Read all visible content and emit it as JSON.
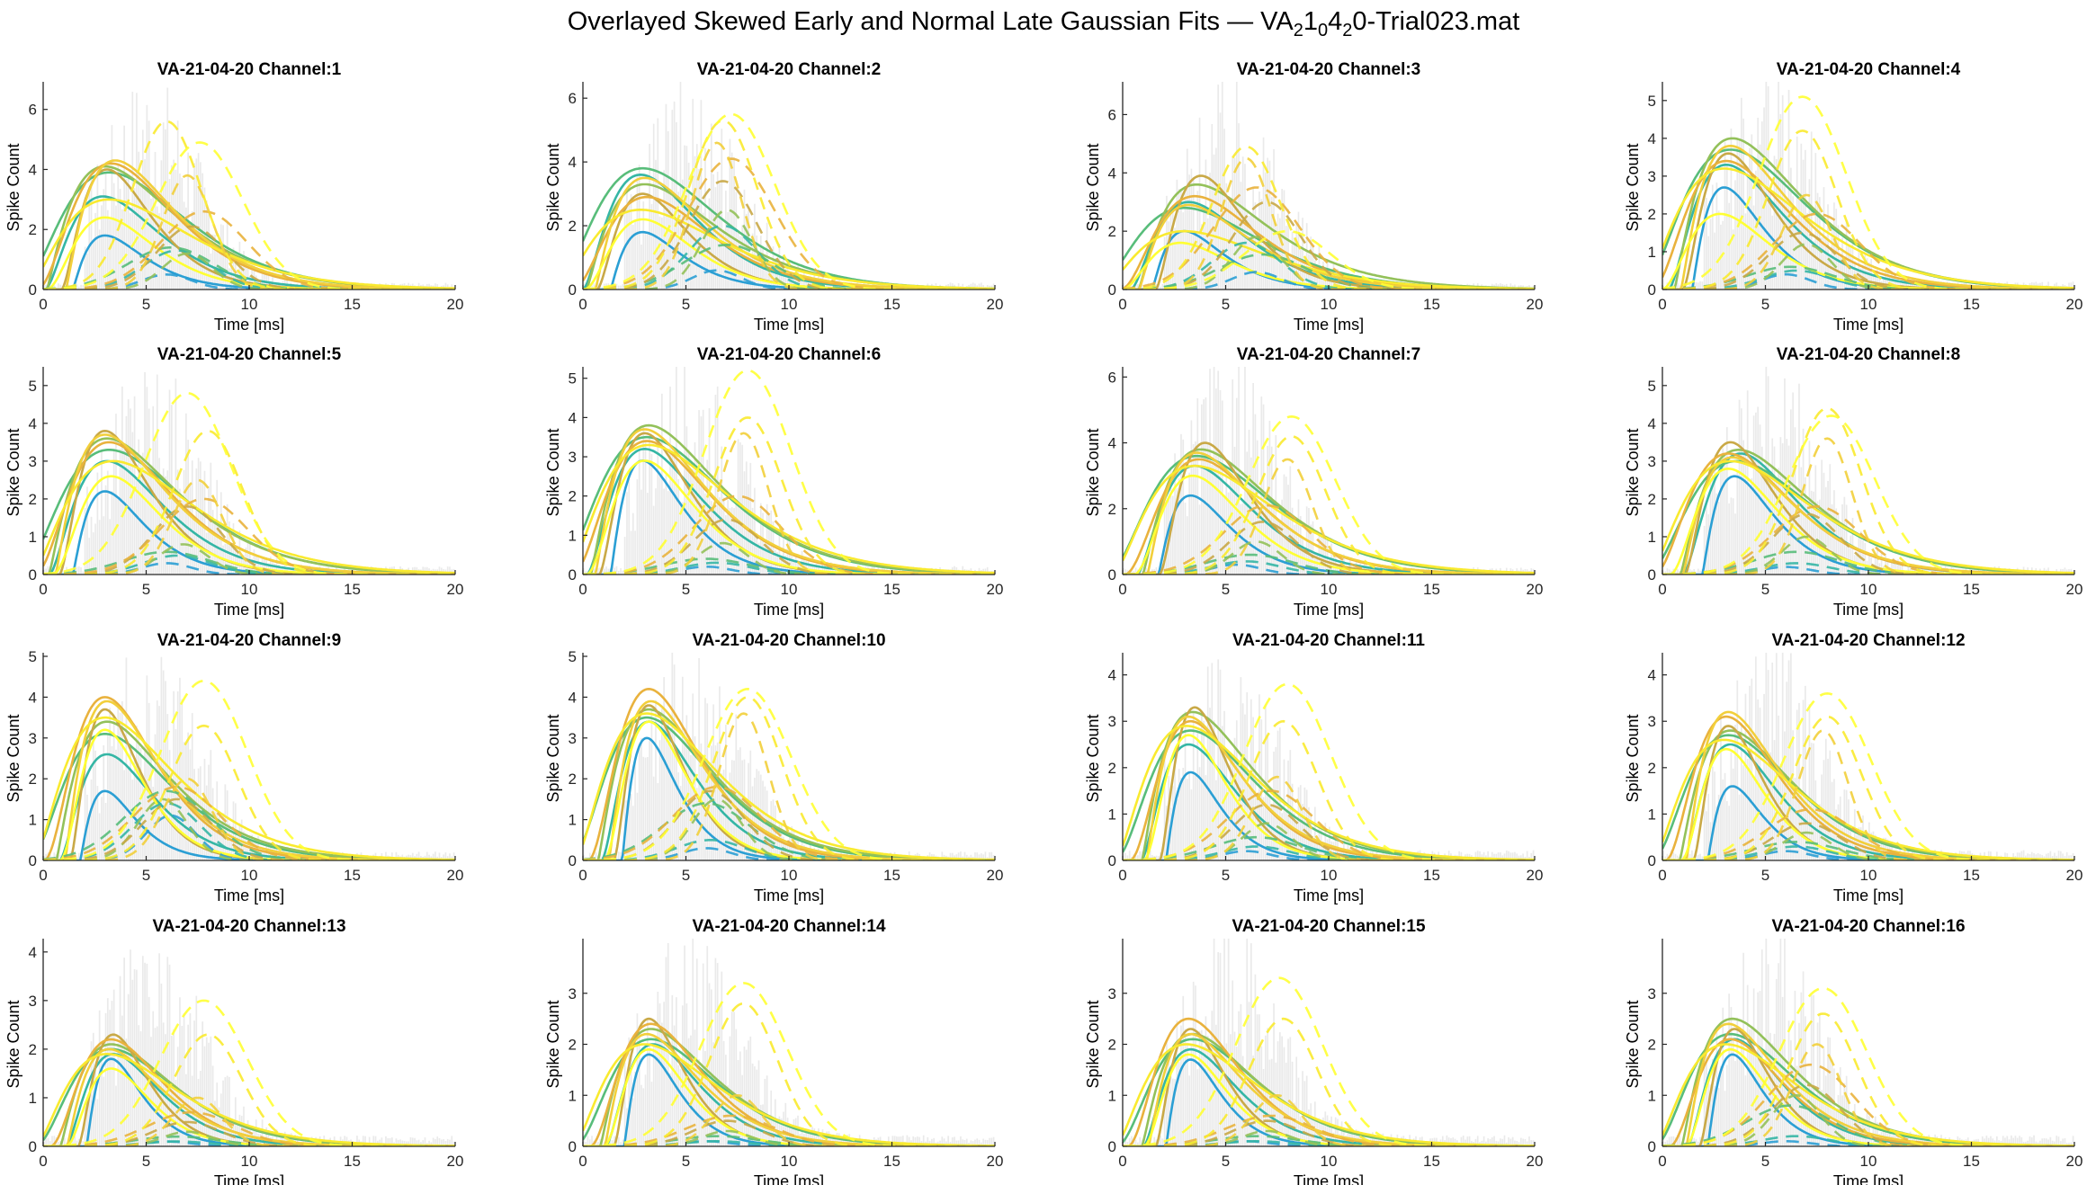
{
  "figure": {
    "title_prefix": "Overlayed Skewed Early and Normal Late Gaussian Fits — VA",
    "title_parts": [
      {
        "text": "2",
        "sub": true
      },
      {
        "text": "1",
        "sub": false
      },
      {
        "text": "0",
        "sub": true
      },
      {
        "text": "4",
        "sub": false
      },
      {
        "text": "2",
        "sub": true
      },
      {
        "text": "0-Trial023.mat",
        "sub": false
      }
    ]
  },
  "colors": {
    "palette": [
      "#2b9fd4",
      "#35b6a5",
      "#58bd7a",
      "#93c15a",
      "#c9a947",
      "#e9b23d",
      "#f2cf3b",
      "#f9ea2f",
      "#ffff33"
    ],
    "histogram": "#d9d9d9",
    "axis": "#262626"
  },
  "chart_data": [
    {
      "type": "line",
      "title": "VA-21-04-20 Channel:1",
      "xlabel": "Time [ms]",
      "ylabel": "Spike Count",
      "xlim": [
        0,
        20
      ],
      "ylim": [
        0,
        6.8
      ],
      "xticks": [
        0,
        5,
        10,
        15,
        20
      ],
      "yticks": [
        0,
        2,
        4,
        6
      ],
      "grid": false,
      "series_note": "overlayed fits",
      "early_peaks": [
        1.8,
        3.1,
        3.9,
        4.1,
        4.0,
        4.2,
        4.3,
        3.0,
        2.4
      ],
      "early_modes": [
        3.0,
        2.9,
        3.2,
        3.0,
        3.1,
        3.3,
        3.5,
        3.2,
        3.0
      ],
      "late_peaks": [
        0.5,
        1.3,
        1.4,
        1.2,
        2.1,
        2.6,
        3.8,
        5.6,
        4.9
      ],
      "late_modes": [
        6.0,
        6.5,
        6.2,
        7.0,
        7.2,
        7.8,
        7.0,
        6.0,
        7.6
      ],
      "hist_peak": 6.5
    },
    {
      "type": "line",
      "title": "VA-21-04-20 Channel:2",
      "xlabel": "Time [ms]",
      "ylabel": "Spike Count",
      "xlim": [
        0,
        20
      ],
      "ylim": [
        0,
        6.4
      ],
      "xticks": [
        0,
        5,
        10,
        15,
        20
      ],
      "yticks": [
        0,
        2,
        4,
        6
      ],
      "grid": false,
      "early_peaks": [
        1.8,
        3.6,
        3.8,
        3.3,
        3.0,
        2.9,
        3.5,
        2.5,
        2.2
      ],
      "early_modes": [
        2.9,
        2.8,
        2.9,
        3.0,
        2.9,
        3.1,
        3.0,
        2.8,
        2.9
      ],
      "late_peaks": [
        0.6,
        2.0,
        1.4,
        2.5,
        3.4,
        4.1,
        4.6,
        5.3,
        5.5
      ],
      "late_modes": [
        6.5,
        6.8,
        7.0,
        7.0,
        6.8,
        7.2,
        6.5,
        6.8,
        7.2
      ],
      "hist_peak": 6.0
    },
    {
      "type": "line",
      "title": "VA-21-04-20 Channel:3",
      "xlabel": "Time [ms]",
      "ylabel": "Spike Count",
      "xlim": [
        0,
        20
      ],
      "ylim": [
        0,
        7.0
      ],
      "xticks": [
        0,
        5,
        10,
        15,
        20
      ],
      "yticks": [
        0,
        2,
        4,
        6
      ],
      "grid": false,
      "early_peaks": [
        2.0,
        3.0,
        2.8,
        3.6,
        3.9,
        3.2,
        2.9,
        2.0,
        1.6
      ],
      "early_modes": [
        3.0,
        3.2,
        3.0,
        3.6,
        3.8,
        3.5,
        3.2,
        3.0,
        2.8
      ],
      "late_peaks": [
        0.6,
        1.6,
        1.2,
        1.8,
        3.0,
        3.5,
        4.5,
        4.9,
        2.0
      ],
      "late_modes": [
        6.5,
        6.0,
        6.8,
        6.5,
        7.0,
        6.5,
        6.0,
        6.0,
        8.0
      ],
      "hist_peak": 6.6
    },
    {
      "type": "line",
      "title": "VA-21-04-20 Channel:4",
      "xlabel": "Time [ms]",
      "ylabel": "Spike Count",
      "xlim": [
        0,
        20
      ],
      "ylim": [
        0,
        5.4
      ],
      "xticks": [
        0,
        5,
        10,
        15,
        20
      ],
      "yticks": [
        0,
        1,
        2,
        3,
        4,
        5
      ],
      "grid": false,
      "early_peaks": [
        2.7,
        3.3,
        3.7,
        4.0,
        3.6,
        3.4,
        3.8,
        3.2,
        2.0
      ],
      "early_modes": [
        3.0,
        3.1,
        3.3,
        3.4,
        3.2,
        3.1,
        3.3,
        3.0,
        2.8
      ],
      "late_peaks": [
        0.4,
        0.5,
        0.6,
        1.2,
        1.5,
        2.0,
        2.5,
        4.2,
        5.1
      ],
      "late_modes": [
        6.0,
        6.5,
        6.2,
        7.0,
        6.8,
        7.5,
        7.0,
        6.8,
        6.8
      ],
      "hist_peak": 5.2
    },
    {
      "type": "line",
      "title": "VA-21-04-20 Channel:5",
      "xlabel": "Time [ms]",
      "ylabel": "Spike Count",
      "xlim": [
        0,
        20
      ],
      "ylim": [
        0,
        5.4
      ],
      "xticks": [
        0,
        5,
        10,
        15,
        20
      ],
      "yticks": [
        0,
        1,
        2,
        3,
        4,
        5
      ],
      "grid": false,
      "early_peaks": [
        2.2,
        3.0,
        3.3,
        3.6,
        3.8,
        3.5,
        3.7,
        3.0,
        2.6
      ],
      "early_modes": [
        3.0,
        3.1,
        3.2,
        3.1,
        3.0,
        3.2,
        3.0,
        3.4,
        3.3
      ],
      "late_peaks": [
        0.3,
        0.5,
        0.6,
        0.8,
        1.8,
        2.0,
        2.5,
        3.8,
        4.8
      ],
      "late_modes": [
        6.0,
        6.5,
        6.0,
        6.8,
        7.0,
        7.8,
        7.5,
        8.0,
        7.0
      ],
      "hist_peak": 5.3
    },
    {
      "type": "line",
      "title": "VA-21-04-20 Channel:6",
      "xlabel": "Time [ms]",
      "ylabel": "Spike Count",
      "xlim": [
        0,
        20
      ],
      "ylim": [
        0,
        5.2
      ],
      "xticks": [
        0,
        5,
        10,
        15,
        20
      ],
      "yticks": [
        0,
        1,
        2,
        3,
        4,
        5
      ],
      "grid": false,
      "early_peaks": [
        2.9,
        3.2,
        3.5,
        3.8,
        3.6,
        3.4,
        3.7,
        3.3,
        2.9
      ],
      "early_modes": [
        2.9,
        3.0,
        3.1,
        3.2,
        3.0,
        3.1,
        3.0,
        3.2,
        3.0
      ],
      "late_peaks": [
        0.2,
        0.3,
        0.4,
        0.8,
        1.4,
        2.0,
        3.6,
        4.0,
        5.2
      ],
      "late_modes": [
        6.0,
        6.5,
        6.0,
        6.8,
        7.0,
        7.5,
        7.8,
        8.0,
        8.0
      ],
      "hist_peak": 5.1
    },
    {
      "type": "line",
      "title": "VA-21-04-20 Channel:7",
      "xlabel": "Time [ms]",
      "ylabel": "Spike Count",
      "xlim": [
        0,
        20
      ],
      "ylim": [
        0,
        6.2
      ],
      "xticks": [
        0,
        5,
        10,
        15,
        20
      ],
      "yticks": [
        0,
        2,
        4,
        6
      ],
      "grid": false,
      "early_peaks": [
        2.4,
        3.3,
        3.6,
        3.8,
        4.0,
        3.5,
        3.7,
        3.3,
        3.0
      ],
      "early_modes": [
        3.3,
        3.5,
        3.6,
        3.8,
        4.0,
        3.7,
        3.6,
        3.5,
        3.4
      ],
      "late_peaks": [
        0.3,
        0.4,
        0.6,
        1.0,
        1.6,
        2.1,
        3.5,
        4.2,
        4.8
      ],
      "late_modes": [
        5.5,
        6.0,
        6.2,
        6.5,
        6.8,
        7.0,
        8.0,
        8.2,
        8.2
      ],
      "hist_peak": 6.0
    },
    {
      "type": "line",
      "title": "VA-21-04-20 Channel:8",
      "xlabel": "Time [ms]",
      "ylabel": "Spike Count",
      "xlim": [
        0,
        20
      ],
      "ylim": [
        0,
        5.4
      ],
      "xticks": [
        0,
        5,
        10,
        15,
        20
      ],
      "yticks": [
        0,
        1,
        2,
        3,
        4,
        5
      ],
      "grid": false,
      "early_peaks": [
        2.6,
        3.2,
        3.0,
        3.3,
        3.5,
        3.2,
        3.1,
        3.0,
        2.8
      ],
      "early_modes": [
        3.5,
        3.8,
        3.6,
        3.7,
        3.3,
        3.2,
        3.4,
        3.3,
        3.2
      ],
      "late_peaks": [
        0.2,
        0.3,
        0.6,
        1.0,
        1.6,
        1.8,
        3.6,
        4.4,
        4.2
      ],
      "late_modes": [
        6.0,
        6.5,
        6.5,
        7.0,
        7.0,
        7.5,
        8.0,
        8.0,
        8.2
      ],
      "hist_peak": 5.3
    },
    {
      "type": "line",
      "title": "VA-21-04-20 Channel:9",
      "xlabel": "Time [ms]",
      "ylabel": "Spike Count",
      "xlim": [
        0,
        20
      ],
      "ylim": [
        0,
        5.0
      ],
      "xticks": [
        0,
        5,
        10,
        15,
        20
      ],
      "yticks": [
        0,
        1,
        2,
        3,
        4,
        5
      ],
      "grid": false,
      "early_peaks": [
        1.7,
        2.6,
        3.1,
        3.4,
        3.7,
        4.0,
        3.9,
        3.5,
        3.2
      ],
      "early_modes": [
        3.0,
        3.1,
        3.0,
        3.1,
        3.0,
        3.0,
        3.1,
        3.0,
        3.0
      ],
      "late_peaks": [
        1.1,
        1.4,
        1.7,
        1.5,
        1.5,
        1.8,
        2.0,
        3.3,
        4.4
      ],
      "late_modes": [
        6.2,
        6.0,
        6.0,
        5.8,
        6.5,
        6.5,
        7.0,
        7.8,
        7.8
      ],
      "hist_peak": 4.9
    },
    {
      "type": "line",
      "title": "VA-21-04-20 Channel:10",
      "xlabel": "Time [ms]",
      "ylabel": "Spike Count",
      "xlim": [
        0,
        20
      ],
      "ylim": [
        0,
        5.0
      ],
      "xticks": [
        0,
        5,
        10,
        15,
        20
      ],
      "yticks": [
        0,
        1,
        2,
        3,
        4,
        5
      ],
      "grid": false,
      "early_peaks": [
        3.0,
        3.4,
        3.5,
        3.7,
        3.8,
        4.2,
        3.9,
        3.6,
        3.4
      ],
      "early_modes": [
        3.1,
        3.2,
        3.1,
        3.2,
        3.2,
        3.2,
        3.3,
        3.1,
        3.2
      ],
      "late_peaks": [
        0.3,
        0.5,
        1.4,
        1.5,
        1.7,
        1.8,
        3.6,
        4.0,
        4.2
      ],
      "late_modes": [
        6.0,
        6.2,
        6.0,
        6.5,
        6.2,
        6.5,
        7.8,
        8.0,
        8.0
      ],
      "hist_peak": 4.9
    },
    {
      "type": "line",
      "title": "VA-21-04-20 Channel:11",
      "xlabel": "Time [ms]",
      "ylabel": "Spike Count",
      "xlim": [
        0,
        20
      ],
      "ylim": [
        0,
        4.4
      ],
      "xticks": [
        0,
        5,
        10,
        15,
        20
      ],
      "yticks": [
        0,
        1,
        2,
        3,
        4
      ],
      "grid": false,
      "early_peaks": [
        1.9,
        2.5,
        2.8,
        3.2,
        3.3,
        3.0,
        3.1,
        2.9,
        2.7
      ],
      "early_modes": [
        3.3,
        3.2,
        3.3,
        3.4,
        3.5,
        3.3,
        3.2,
        3.1,
        3.2
      ],
      "late_peaks": [
        0.2,
        0.3,
        0.5,
        0.8,
        1.2,
        1.5,
        1.8,
        3.0,
        3.8
      ],
      "late_modes": [
        6.0,
        6.5,
        6.5,
        7.0,
        7.0,
        7.2,
        7.5,
        7.8,
        8.0
      ],
      "hist_peak": 4.3
    },
    {
      "type": "line",
      "title": "VA-21-04-20 Channel:12",
      "xlabel": "Time [ms]",
      "ylabel": "Spike Count",
      "xlim": [
        0,
        20
      ],
      "ylim": [
        0,
        4.4
      ],
      "xticks": [
        0,
        5,
        10,
        15,
        20
      ],
      "yticks": [
        0,
        1,
        2,
        3,
        4
      ],
      "grid": false,
      "early_peaks": [
        1.6,
        2.5,
        2.7,
        2.8,
        2.9,
        3.1,
        3.2,
        2.6,
        2.4
      ],
      "early_modes": [
        3.4,
        3.3,
        3.2,
        3.3,
        3.2,
        3.1,
        3.2,
        3.0,
        3.1
      ],
      "late_peaks": [
        0.2,
        0.3,
        0.4,
        0.6,
        0.8,
        1.1,
        2.8,
        3.1,
        3.6
      ],
      "late_modes": [
        6.0,
        6.5,
        6.5,
        7.0,
        7.0,
        7.2,
        7.8,
        8.0,
        8.0
      ],
      "hist_peak": 4.3
    },
    {
      "type": "line",
      "title": "VA-21-04-20 Channel:13",
      "xlabel": "Time [ms]",
      "ylabel": "Spike Count",
      "xlim": [
        0,
        20
      ],
      "ylim": [
        0,
        4.2
      ],
      "xticks": [
        0,
        5,
        10,
        15,
        20
      ],
      "yticks": [
        0,
        1,
        2,
        3,
        4
      ],
      "grid": false,
      "early_peaks": [
        1.8,
        1.9,
        2.0,
        2.1,
        2.3,
        2.2,
        2.0,
        1.9,
        1.6
      ],
      "early_modes": [
        3.3,
        3.4,
        3.3,
        3.3,
        3.4,
        3.3,
        3.2,
        3.1,
        3.3
      ],
      "late_peaks": [
        0.1,
        0.1,
        0.2,
        0.3,
        0.5,
        0.7,
        1.0,
        2.3,
        3.0
      ],
      "late_modes": [
        6.0,
        6.5,
        6.5,
        7.0,
        7.0,
        7.2,
        7.5,
        8.0,
        7.8
      ],
      "hist_peak": 4.1
    },
    {
      "type": "line",
      "title": "VA-21-04-20 Channel:14",
      "xlabel": "Time [ms]",
      "ylabel": "Spike Count",
      "xlim": [
        0,
        20
      ],
      "ylim": [
        0,
        4.0
      ],
      "xticks": [
        0,
        5,
        10,
        15,
        20
      ],
      "yticks": [
        0,
        1,
        2,
        3
      ],
      "grid": false,
      "early_peaks": [
        1.8,
        2.0,
        2.1,
        2.3,
        2.5,
        2.4,
        2.2,
        2.0,
        1.9
      ],
      "early_modes": [
        3.2,
        3.4,
        3.3,
        3.3,
        3.2,
        3.3,
        3.1,
        3.0,
        3.2
      ],
      "late_peaks": [
        0.1,
        0.1,
        0.2,
        0.3,
        0.5,
        0.6,
        1.0,
        2.8,
        3.2
      ],
      "late_modes": [
        6.0,
        6.5,
        6.5,
        7.0,
        7.0,
        7.2,
        7.5,
        7.8,
        7.8
      ],
      "hist_peak": 3.9
    },
    {
      "type": "line",
      "title": "VA-21-04-20 Channel:15",
      "xlabel": "Time [ms]",
      "ylabel": "Spike Count",
      "xlim": [
        0,
        20
      ],
      "ylim": [
        0,
        4.0
      ],
      "xticks": [
        0,
        5,
        10,
        15,
        20
      ],
      "yticks": [
        0,
        1,
        2,
        3
      ],
      "grid": false,
      "early_peaks": [
        1.7,
        1.9,
        2.1,
        2.2,
        2.3,
        2.5,
        2.2,
        2.0,
        1.8
      ],
      "early_modes": [
        3.3,
        3.3,
        3.4,
        3.4,
        3.3,
        3.2,
        3.3,
        3.1,
        3.2
      ],
      "late_peaks": [
        0.1,
        0.1,
        0.2,
        0.3,
        0.5,
        0.6,
        1.0,
        2.5,
        3.3
      ],
      "late_modes": [
        6.0,
        6.5,
        6.5,
        7.0,
        7.0,
        7.2,
        7.5,
        7.8,
        7.6
      ],
      "hist_peak": 3.9
    },
    {
      "type": "line",
      "title": "VA-21-04-20 Channel:16",
      "xlabel": "Time [ms]",
      "ylabel": "Spike Count",
      "xlim": [
        0,
        20
      ],
      "ylim": [
        0,
        4.0
      ],
      "xticks": [
        0,
        5,
        10,
        15,
        20
      ],
      "yticks": [
        0,
        1,
        2,
        3
      ],
      "grid": false,
      "early_peaks": [
        1.8,
        2.1,
        2.2,
        2.5,
        2.3,
        2.1,
        2.4,
        2.0,
        1.9
      ],
      "early_modes": [
        3.4,
        3.5,
        3.3,
        3.4,
        3.5,
        3.3,
        3.2,
        3.1,
        3.3
      ],
      "late_peaks": [
        0.1,
        0.2,
        0.8,
        1.0,
        1.2,
        1.6,
        2.0,
        2.6,
        3.1
      ],
      "late_modes": [
        6.0,
        6.5,
        6.2,
        6.5,
        7.0,
        7.2,
        7.5,
        7.8,
        7.8
      ],
      "hist_peak": 3.9
    }
  ]
}
